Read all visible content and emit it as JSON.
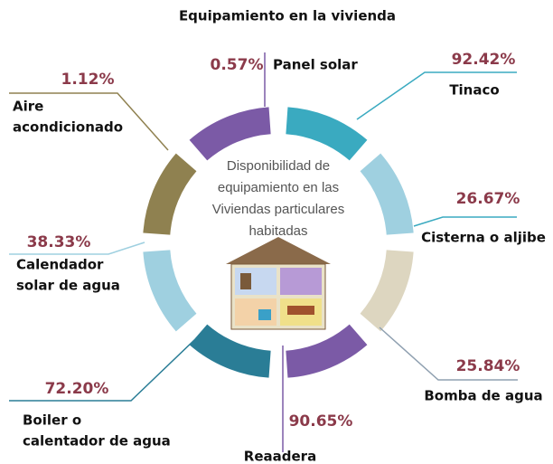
{
  "title": "Equipamiento  en la vivienda",
  "center_text": [
    "Disponibilidad de",
    "equipamiento en las",
    "Viviendas particulares",
    "habitadas"
  ],
  "items": [
    {
      "label": [
        "Panel solar"
      ],
      "value": "0.57%"
    },
    {
      "label": [
        "Tinaco"
      ],
      "value": "92.42%"
    },
    {
      "label": [
        "Aire",
        "acondicionado"
      ],
      "value": "1.12%"
    },
    {
      "label": [
        "Cisterna o aljibe"
      ],
      "value": "26.67%"
    },
    {
      "label": [
        "Calendador",
        "solar de agua"
      ],
      "value": "38.33%"
    },
    {
      "label": [
        "Bomba de agua"
      ],
      "value": "25.84%"
    },
    {
      "label": [
        "Boiler o",
        "calentador de agua"
      ],
      "value": "72.20%"
    },
    {
      "label": [
        "Reaadera"
      ],
      "value": "90.65%"
    }
  ]
}
